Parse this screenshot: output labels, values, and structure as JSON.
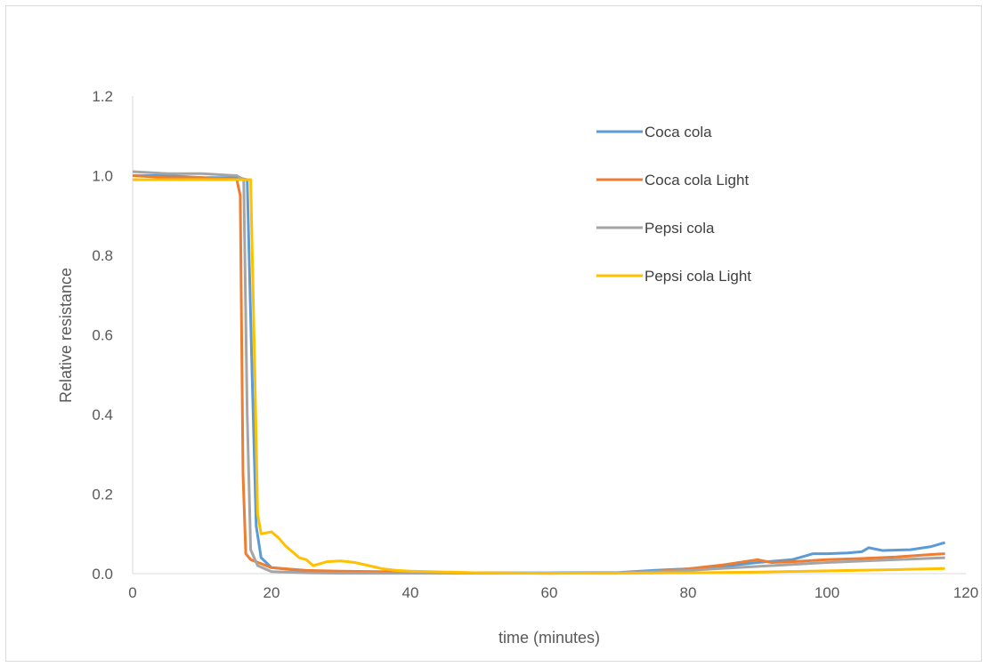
{
  "chart_data": {
    "type": "line",
    "title": "",
    "xlabel": "time (minutes)",
    "ylabel": "Relative resistance",
    "xlim": [
      0,
      120
    ],
    "ylim": [
      0,
      1.2
    ],
    "x_ticks": [
      "0",
      "20",
      "40",
      "60",
      "80",
      "100",
      "120"
    ],
    "y_ticks": [
      "0.0",
      "0.2",
      "0.4",
      "0.6",
      "0.8",
      "1.0",
      "1.2"
    ],
    "grid": false,
    "legend_position": "top-right",
    "series": [
      {
        "name": "Coca cola",
        "color": "#5b9bd5",
        "points": [
          [
            0,
            1.0
          ],
          [
            5,
            1.0
          ],
          [
            10,
            0.995
          ],
          [
            15,
            0.995
          ],
          [
            16.5,
            0.99
          ],
          [
            17.2,
            0.5
          ],
          [
            17.8,
            0.12
          ],
          [
            18.5,
            0.04
          ],
          [
            20,
            0.015
          ],
          [
            25,
            0.006
          ],
          [
            30,
            0.004
          ],
          [
            40,
            0.003
          ],
          [
            50,
            0.002
          ],
          [
            60,
            0.002
          ],
          [
            70,
            0.003
          ],
          [
            75,
            0.008
          ],
          [
            80,
            0.012
          ],
          [
            85,
            0.018
          ],
          [
            90,
            0.028
          ],
          [
            95,
            0.035
          ],
          [
            98,
            0.05
          ],
          [
            100,
            0.05
          ],
          [
            103,
            0.052
          ],
          [
            105,
            0.055
          ],
          [
            106,
            0.065
          ],
          [
            108,
            0.058
          ],
          [
            112,
            0.06
          ],
          [
            115,
            0.068
          ],
          [
            117,
            0.078
          ]
        ]
      },
      {
        "name": "Coca cola Light",
        "color": "#ed7d31",
        "points": [
          [
            0,
            1.0
          ],
          [
            5,
            0.995
          ],
          [
            10,
            0.995
          ],
          [
            15,
            0.99
          ],
          [
            15.5,
            0.95
          ],
          [
            15.9,
            0.25
          ],
          [
            16.3,
            0.05
          ],
          [
            17,
            0.035
          ],
          [
            20,
            0.015
          ],
          [
            25,
            0.008
          ],
          [
            30,
            0.006
          ],
          [
            40,
            0.004
          ],
          [
            50,
            0.002
          ],
          [
            60,
            0.001
          ],
          [
            70,
            0.002
          ],
          [
            75,
            0.005
          ],
          [
            80,
            0.012
          ],
          [
            85,
            0.022
          ],
          [
            90,
            0.035
          ],
          [
            92,
            0.028
          ],
          [
            95,
            0.03
          ],
          [
            100,
            0.035
          ],
          [
            105,
            0.038
          ],
          [
            110,
            0.042
          ],
          [
            115,
            0.048
          ],
          [
            117,
            0.05
          ]
        ]
      },
      {
        "name": "Pepsi cola",
        "color": "#a5a5a5",
        "points": [
          [
            0,
            1.01
          ],
          [
            5,
            1.005
          ],
          [
            10,
            1.005
          ],
          [
            15,
            1.0
          ],
          [
            16,
            0.99
          ],
          [
            16.5,
            0.4
          ],
          [
            17,
            0.06
          ],
          [
            18,
            0.02
          ],
          [
            20,
            0.005
          ],
          [
            25,
            0.002
          ],
          [
            30,
            0.001
          ],
          [
            40,
            0.001
          ],
          [
            50,
            0.001
          ],
          [
            60,
            0.001
          ],
          [
            70,
            0.002
          ],
          [
            80,
            0.008
          ],
          [
            90,
            0.018
          ],
          [
            100,
            0.028
          ],
          [
            110,
            0.035
          ],
          [
            117,
            0.04
          ]
        ]
      },
      {
        "name": "Pepsi cola Light",
        "color": "#ffc000",
        "points": [
          [
            0,
            0.99
          ],
          [
            5,
            0.99
          ],
          [
            10,
            0.99
          ],
          [
            15,
            0.99
          ],
          [
            17,
            0.99
          ],
          [
            17.6,
            0.5
          ],
          [
            18,
            0.15
          ],
          [
            18.5,
            0.1
          ],
          [
            20,
            0.105
          ],
          [
            21,
            0.09
          ],
          [
            22,
            0.07
          ],
          [
            23,
            0.055
          ],
          [
            24,
            0.04
          ],
          [
            25,
            0.035
          ],
          [
            26,
            0.02
          ],
          [
            27,
            0.025
          ],
          [
            28,
            0.03
          ],
          [
            30,
            0.032
          ],
          [
            32,
            0.028
          ],
          [
            34,
            0.02
          ],
          [
            36,
            0.012
          ],
          [
            38,
            0.008
          ],
          [
            40,
            0.006
          ],
          [
            45,
            0.004
          ],
          [
            50,
            0.002
          ],
          [
            60,
            0.001
          ],
          [
            70,
            0.001
          ],
          [
            80,
            0.002
          ],
          [
            90,
            0.004
          ],
          [
            100,
            0.007
          ],
          [
            110,
            0.01
          ],
          [
            117,
            0.013
          ]
        ]
      }
    ]
  }
}
